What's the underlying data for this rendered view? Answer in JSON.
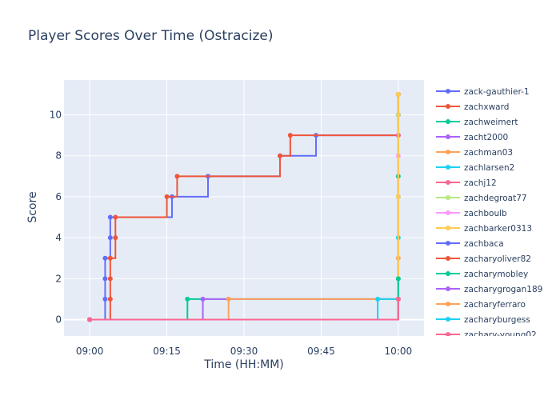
{
  "chart_data": {
    "type": "line",
    "title": "Player Scores Over Time (Ostracize)",
    "xlabel": "Time (HH:MM)",
    "ylabel": "Score",
    "x_unit": "HH:MM",
    "x_ticks": [
      "09:00",
      "09:15",
      "09:30",
      "09:45",
      "10:00"
    ],
    "y_ticks": [
      0,
      2,
      4,
      6,
      8,
      10
    ],
    "xlim": [
      "08:55",
      "10:05"
    ],
    "ylim": [
      -0.8,
      11.7
    ],
    "line_shape": "step",
    "grid": true,
    "legend_position": "right",
    "plot_background": "#e5ecf6",
    "series": [
      {
        "name": "zack-gauthier-1",
        "color": "#636efa",
        "points": [
          [
            "09:00",
            0
          ],
          [
            "09:03",
            1
          ],
          [
            "09:03",
            2
          ],
          [
            "09:03",
            3
          ],
          [
            "09:04",
            4
          ],
          [
            "09:04",
            5
          ],
          [
            "09:16",
            6
          ],
          [
            "09:23",
            7
          ],
          [
            "09:37",
            8
          ],
          [
            "09:44",
            9
          ],
          [
            "10:00",
            10
          ],
          [
            "10:00",
            11
          ]
        ]
      },
      {
        "name": "zachxward",
        "color": "#ef553b",
        "points": [
          [
            "09:00",
            0
          ],
          [
            "09:04",
            1
          ],
          [
            "09:04",
            2
          ],
          [
            "09:04",
            3
          ],
          [
            "09:05",
            4
          ],
          [
            "09:05",
            5
          ],
          [
            "09:15",
            6
          ],
          [
            "09:17",
            7
          ],
          [
            "09:37",
            8
          ],
          [
            "09:39",
            9
          ],
          [
            "10:00",
            9
          ],
          [
            "10:00",
            10
          ],
          [
            "10:00",
            11
          ]
        ]
      },
      {
        "name": "zachweimert",
        "color": "#00cc96",
        "points": [
          [
            "09:00",
            0
          ],
          [
            "09:19",
            1
          ],
          [
            "10:00",
            2
          ],
          [
            "10:00",
            7
          ]
        ]
      },
      {
        "name": "zacht2000",
        "color": "#ab63fa",
        "points": [
          [
            "09:00",
            0
          ],
          [
            "09:22",
            1
          ],
          [
            "10:00",
            9
          ]
        ]
      },
      {
        "name": "zachman03",
        "color": "#ffa15a",
        "points": [
          [
            "09:00",
            0
          ],
          [
            "09:27",
            1
          ],
          [
            "10:00",
            3
          ]
        ]
      },
      {
        "name": "zachlarsen2",
        "color": "#19d3f3",
        "points": [
          [
            "09:00",
            0
          ],
          [
            "09:56",
            1
          ],
          [
            "10:00",
            4
          ],
          [
            "10:00",
            6
          ]
        ]
      },
      {
        "name": "zachj12",
        "color": "#ff6692",
        "points": [
          [
            "09:00",
            0
          ],
          [
            "10:00",
            1
          ],
          [
            "10:00",
            9
          ]
        ]
      },
      {
        "name": "zachdegroat77",
        "color": "#b6e880",
        "points": [
          [
            "09:00",
            0
          ],
          [
            "10:00",
            2
          ],
          [
            "10:00",
            10
          ]
        ]
      },
      {
        "name": "zachboulb",
        "color": "#ff97ff",
        "points": [
          [
            "09:00",
            0
          ],
          [
            "10:00",
            8
          ]
        ]
      },
      {
        "name": "zachbarker0313",
        "color": "#fecb52",
        "points": [
          [
            "09:00",
            0
          ],
          [
            "10:00",
            6
          ],
          [
            "10:00",
            11
          ]
        ]
      },
      {
        "name": "zachbaca",
        "color": "#636efa",
        "points": [
          [
            "09:00",
            0
          ],
          [
            "10:00",
            1
          ]
        ]
      },
      {
        "name": "zacharyoliver82",
        "color": "#ef553b",
        "points": [
          [
            "09:00",
            0
          ],
          [
            "10:00",
            1
          ]
        ]
      },
      {
        "name": "zacharymobley",
        "color": "#00cc96",
        "points": [
          [
            "09:00",
            0
          ],
          [
            "10:00",
            2
          ]
        ]
      },
      {
        "name": "zacharygrogan189",
        "color": "#ab63fa",
        "points": [
          [
            "09:00",
            0
          ],
          [
            "10:00",
            1
          ]
        ]
      },
      {
        "name": "zacharyferraro",
        "color": "#ffa15a",
        "points": [
          [
            "09:00",
            0
          ],
          [
            "10:00",
            1
          ]
        ]
      },
      {
        "name": "zacharyburgess",
        "color": "#19d3f3",
        "points": [
          [
            "09:00",
            0
          ],
          [
            "10:00",
            1
          ]
        ]
      },
      {
        "name": "zachary-young02",
        "color": "#ff6692",
        "points": [
          [
            "09:00",
            0
          ],
          [
            "10:00",
            1
          ]
        ]
      }
    ]
  }
}
